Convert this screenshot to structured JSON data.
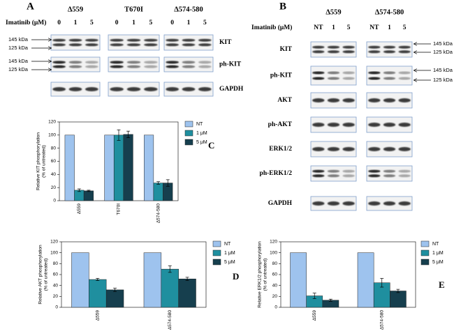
{
  "panel_a": {
    "label": "A",
    "treatment": "Imatinib (μM)",
    "groups": [
      {
        "name": "Δ559",
        "lanes": [
          "0",
          "1",
          "5"
        ]
      },
      {
        "name": "T670I",
        "lanes": [
          "0",
          "1",
          "5"
        ]
      },
      {
        "name": "Δ574-580",
        "lanes": [
          "0",
          "1",
          "5"
        ]
      }
    ],
    "rows": [
      "KIT",
      "ph-KIT",
      "GAPDH"
    ],
    "markers": [
      "145 kDa",
      "125 kDa",
      "145 kDa",
      "125 kDa"
    ]
  },
  "panel_b": {
    "label": "B",
    "treatment": "Imatinib (μM)",
    "groups": [
      {
        "name": "Δ559",
        "lanes": [
          "NT",
          "1",
          "5"
        ]
      },
      {
        "name": "Δ574-580",
        "lanes": [
          "NT",
          "1",
          "5"
        ]
      }
    ],
    "rows": [
      "KIT",
      "ph-KIT",
      "AKT",
      "ph-AKT",
      "ERK1/2",
      "ph-ERK1/2",
      "GAPDH"
    ],
    "markers": [
      "145 kDa",
      "125 kDa",
      "145 kDa",
      "125 kDa"
    ]
  },
  "chart_data": [
    {
      "type": "bar",
      "label": "C",
      "ylabel": [
        "Relative KIT phosphorylation",
        "(% of untreated)"
      ],
      "categories": [
        "Δ559",
        "T670I",
        "Δ574-580"
      ],
      "series": [
        {
          "name": "NT",
          "color": "#9ec3ee",
          "values": [
            100,
            100,
            100
          ]
        },
        {
          "name": "1 μM",
          "color": "#1f8f9f",
          "values": [
            16,
            100,
            27
          ],
          "errors": [
            2,
            8,
            2
          ]
        },
        {
          "name": "5 μM",
          "color": "#163f4e",
          "values": [
            15,
            101,
            27
          ],
          "errors": [
            1,
            5,
            5
          ]
        }
      ],
      "ylim": [
        0,
        120
      ],
      "yticks": [
        0,
        20,
        40,
        60,
        80,
        100,
        120
      ],
      "legend": "right"
    },
    {
      "type": "bar",
      "label": "D",
      "ylabel": [
        "Relative AKT phosphorylation",
        "(% of untreated)"
      ],
      "categories": [
        "Δ559",
        "Δ574-580"
      ],
      "series": [
        {
          "name": "NT",
          "color": "#9ec3ee",
          "values": [
            100,
            100
          ]
        },
        {
          "name": "1 μM",
          "color": "#1f8f9f",
          "values": [
            51,
            70
          ],
          "errors": [
            2,
            6
          ]
        },
        {
          "name": "5 μM",
          "color": "#163f4e",
          "values": [
            32,
            52
          ],
          "errors": [
            3,
            3
          ]
        }
      ],
      "ylim": [
        0,
        120
      ],
      "yticks": [
        0,
        20,
        40,
        60,
        80,
        100,
        120
      ],
      "legend": "right"
    },
    {
      "type": "bar",
      "label": "E",
      "ylabel": [
        "Relative ERK1/2 phosphorylation",
        "(% of untreated)"
      ],
      "categories": [
        "Δ559",
        "Δ574-580"
      ],
      "series": [
        {
          "name": "NT",
          "color": "#9ec3ee",
          "values": [
            100,
            100
          ]
        },
        {
          "name": "1 μM",
          "color": "#1f8f9f",
          "values": [
            21,
            45
          ],
          "errors": [
            5,
            8
          ]
        },
        {
          "name": "5 μM",
          "color": "#163f4e",
          "values": [
            13,
            30
          ],
          "errors": [
            2,
            3
          ]
        }
      ],
      "ylim": [
        0,
        120
      ],
      "yticks": [
        0,
        20,
        40,
        60,
        80,
        100,
        120
      ],
      "legend": "right"
    }
  ]
}
